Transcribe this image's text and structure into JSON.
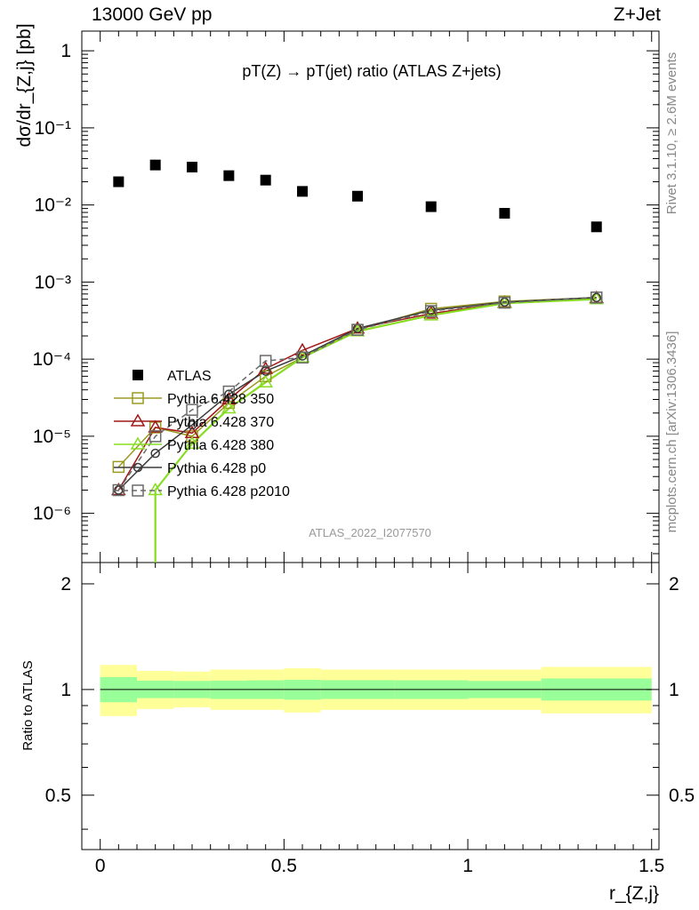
{
  "header": {
    "left": "13000 GeV pp",
    "right": "Z+Jet",
    "side_top": "Rivet 3.1.10, ≥ 2.6M events",
    "side_bottom": "mcplots.cern.ch [arXiv:1306.3436]",
    "watermark": "ATLAS_2022_I2077570"
  },
  "chart_data": [
    {
      "type": "scatter",
      "title": "pT(Z) → pT(jet) ratio (ATLAS Z+jets)",
      "ylabel": "dσ/dr_{Z,j} [pb]",
      "xlabel": "r_{Z,j}",
      "yscale": "log",
      "xlim": [
        -0.05,
        1.52
      ],
      "ylim": [
        2.3e-07,
        1.8
      ],
      "y_tick_labels": [
        "10⁻⁶",
        "10⁻⁵",
        "10⁻⁴",
        "10⁻³",
        "10⁻²",
        "10⁻¹",
        "1"
      ],
      "legend_position": "left-middle",
      "x": [
        0.05,
        0.15,
        0.25,
        0.35,
        0.45,
        0.55,
        0.7,
        0.9,
        1.1,
        1.35
      ],
      "series": [
        {
          "name": "ATLAS",
          "color": "#000000",
          "marker": "filled-square",
          "values": [
            0.02,
            0.033,
            0.031,
            0.024,
            0.021,
            0.015,
            0.013,
            0.0095,
            0.0078,
            0.0052
          ]
        },
        {
          "name": "Pythia 6.428 350",
          "color": "#9a9a22",
          "marker": "open-square",
          "values": [
            4e-06,
            1.3e-05,
            1e-05,
            2.7e-05,
            6e-05,
            0.000105,
            0.00024,
            0.00045,
            0.00056,
            0.00063
          ]
        },
        {
          "name": "Pythia 6.428 370",
          "color": "#a01818",
          "marker": "open-triangle",
          "values": [
            2e-06,
            1.3e-05,
            1.1e-05,
            3e-05,
            7.5e-05,
            0.00013,
            0.00025,
            0.00039,
            0.00054,
            0.00062
          ]
        },
        {
          "name": "Pythia 6.428 380",
          "color": "#88dd22",
          "marker": "open-triangle",
          "values": [
            null,
            2e-06,
            8e-06,
            2.3e-05,
            5e-05,
            0.000105,
            0.00023,
            0.00037,
            0.00053,
            0.0006
          ]
        },
        {
          "name": "Pythia 6.428 p0",
          "color": "#3a3a3a",
          "marker": "open-circle",
          "values": [
            2e-06,
            6e-06,
            1.4e-05,
            3.5e-05,
            7e-05,
            0.00011,
            0.00025,
            0.00043,
            0.00055,
            0.00063
          ]
        },
        {
          "name": "Pythia 6.428 p2010",
          "color": "#6a6a6a",
          "marker": "open-square",
          "dashed": true,
          "values": [
            2e-06,
            1e-05,
            2.2e-05,
            3.8e-05,
            9.5e-05,
            0.000105,
            0.00024,
            0.00042,
            0.00054,
            0.00063
          ]
        }
      ]
    },
    {
      "type": "area",
      "ylabel": "Ratio to ATLAS",
      "xlabel": "r_{Z,j}",
      "xlim": [
        -0.05,
        1.52
      ],
      "ylim": [
        0.35,
        2.3
      ],
      "y_tick_labels": [
        "0.5",
        "1",
        "2"
      ],
      "x_tick_labels": [
        "0",
        "0.5",
        "1",
        "1.5"
      ],
      "bin_edges": [
        0.0,
        0.1,
        0.2,
        0.3,
        0.4,
        0.5,
        0.6,
        0.8,
        1.0,
        1.2,
        1.5
      ],
      "stat_band": {
        "color": "#99ff99",
        "low": [
          0.92,
          0.945,
          0.945,
          0.94,
          0.94,
          0.935,
          0.94,
          0.94,
          0.945,
          0.93
        ],
        "high": [
          1.085,
          1.06,
          1.058,
          1.06,
          1.062,
          1.066,
          1.063,
          1.062,
          1.058,
          1.075
        ]
      },
      "total_band": {
        "color": "#ffff99",
        "low": [
          0.84,
          0.88,
          0.89,
          0.875,
          0.875,
          0.86,
          0.875,
          0.875,
          0.875,
          0.855
        ],
        "high": [
          1.175,
          1.13,
          1.125,
          1.14,
          1.14,
          1.15,
          1.14,
          1.14,
          1.14,
          1.16
        ]
      },
      "reference_line": 1
    }
  ]
}
